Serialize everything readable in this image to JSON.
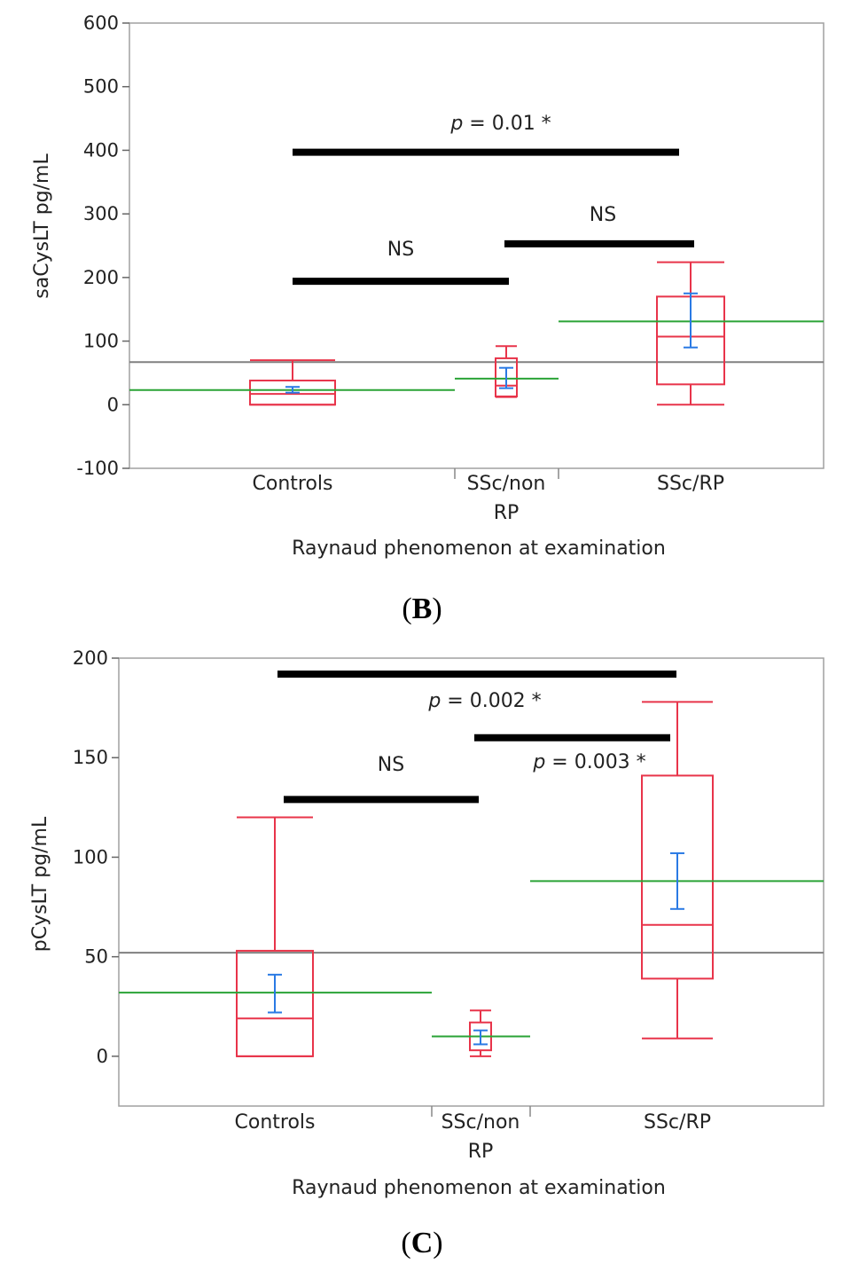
{
  "chart_data": [
    {
      "type": "box",
      "panel_label": "B",
      "ylabel": "saCysLT pg/mL",
      "xlabel": "Raynaud phenomenon at examination",
      "ylim": [
        -100,
        600
      ],
      "yticks": [
        -100,
        0,
        100,
        200,
        300,
        400,
        500,
        600
      ],
      "categories": [
        "Controls",
        "SSc/non RP",
        "SSc/RP"
      ],
      "category_lines": [
        [
          "Controls"
        ],
        [
          "SSc/non",
          "RP"
        ],
        [
          "SSc/RP"
        ]
      ],
      "grand_mean": 67,
      "boxes": [
        {
          "min": 0,
          "q1": 0,
          "median": 17,
          "q3": 38,
          "max": 70,
          "mean": 23,
          "ci": [
            19,
            28
          ]
        },
        {
          "min": 12,
          "q1": 13,
          "median": 30,
          "q3": 73,
          "max": 92,
          "mean": 41,
          "ci": [
            26,
            58
          ]
        },
        {
          "min": 0,
          "q1": 32,
          "median": 107,
          "q3": 170,
          "max": 224,
          "mean": 131,
          "ci": [
            90,
            175
          ]
        }
      ],
      "comparisons": [
        {
          "from": "Controls",
          "to": "SSc/RP",
          "y": 397,
          "label_prefix": "p",
          "label_value": " = 0.01 *"
        },
        {
          "from": "Controls",
          "to": "SSc/non RP",
          "y": 194,
          "label_prefix": "",
          "label_value": "NS"
        },
        {
          "from": "SSc/non RP",
          "to": "SSc/RP",
          "y": 253,
          "label_prefix": "",
          "label_value": "NS"
        }
      ]
    },
    {
      "type": "box",
      "panel_label": "C",
      "ylabel": "pCysLT pg/mL",
      "xlabel": "Raynaud phenomenon at examination",
      "ylim": [
        -25,
        200
      ],
      "yticks": [
        0,
        50,
        100,
        150,
        200
      ],
      "categories": [
        "Controls",
        "SSc/non RP",
        "SSc/RP"
      ],
      "category_lines": [
        [
          "Controls"
        ],
        [
          "SSc/non",
          "RP"
        ],
        [
          "SSc/RP"
        ]
      ],
      "grand_mean": 52,
      "boxes": [
        {
          "min": 0,
          "q1": 0,
          "median": 19,
          "q3": 53,
          "max": 120,
          "mean": 32,
          "ci": [
            22,
            41
          ]
        },
        {
          "min": 0,
          "q1": 3,
          "median": 10,
          "q3": 17,
          "max": 23,
          "mean": 10,
          "ci": [
            6,
            13
          ]
        },
        {
          "min": 9,
          "q1": 39,
          "median": 66,
          "q3": 141,
          "max": 178,
          "mean": 88,
          "ci": [
            74,
            102
          ]
        }
      ],
      "comparisons": [
        {
          "from": "Controls",
          "to": "SSc/RP",
          "y": 192,
          "label_prefix": "p",
          "label_value": " = 0.002 *"
        },
        {
          "from": "Controls",
          "to": "SSc/non RP",
          "y": 129,
          "label_prefix": "",
          "label_value": "NS"
        },
        {
          "from": "SSc/non RP",
          "to": "SSc/RP",
          "y": 160,
          "label_prefix": "p",
          "label_value": " = 0.003 *"
        }
      ]
    }
  ],
  "colors": {
    "box": "#e8344a",
    "ci": "#2a7ae4",
    "group_mean": "#2aa336",
    "grand_mean": "#808080",
    "bar": "#000000",
    "frame": "#a0a0a0"
  }
}
